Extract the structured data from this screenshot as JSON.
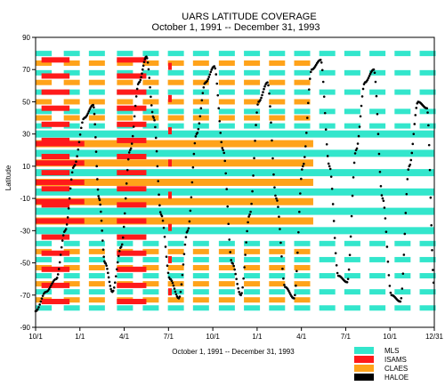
{
  "chart_data": {
    "type": "scatter",
    "title": "UARS LATITUDE COVERAGE",
    "subtitle": "October 1, 1991  --  December 31, 1993",
    "xlabel": "October 1, 1991  --  December 31, 1993",
    "ylabel": "Latitude",
    "x_range_months": [
      0,
      27
    ],
    "ylim": [
      -90,
      90
    ],
    "x_ticks": [
      {
        "label": "10/1",
        "month": 0
      },
      {
        "label": "1/1",
        "month": 3
      },
      {
        "label": "4/1",
        "month": 6
      },
      {
        "label": "7/1",
        "month": 9
      },
      {
        "label": "10/1",
        "month": 12
      },
      {
        "label": "1/1",
        "month": 15
      },
      {
        "label": "4/1",
        "month": 18
      },
      {
        "label": "7/1",
        "month": 21
      },
      {
        "label": "10/1",
        "month": 24
      },
      {
        "label": "12/31",
        "month": 27
      }
    ],
    "y_ticks": [
      90,
      70,
      50,
      30,
      10,
      -10,
      -30,
      -50,
      -70,
      -90
    ],
    "legend_position": "bottom-right",
    "series": [
      {
        "name": "MLS",
        "color": "#33e6cc",
        "equatorial_band": [
          -34,
          34
        ],
        "equatorial_months": [
          0,
          27
        ],
        "equatorial_stripes": [
          -30,
          -18,
          -6,
          6,
          18,
          30
        ],
        "high_lat_stripes": [
          80,
          68,
          56,
          44,
          35,
          -38,
          -48,
          -58,
          -68,
          -78
        ],
        "yaw_columns_months": [
          0.55,
          2.45,
          4.15,
          6.05,
          7.8,
          9.5,
          11.2,
          12.95,
          14.65,
          16.35,
          18.05,
          19.75,
          21.45,
          23.15,
          24.85,
          26.55
        ]
      },
      {
        "name": "ISAMS",
        "color": "#ff1a1a",
        "equatorial_band": [
          -34,
          34
        ],
        "equatorial_months": [
          0,
          3.3
        ],
        "columns": [
          {
            "months": [
              0.4,
              2.3
            ],
            "lat": [
              -80,
              80
            ]
          },
          {
            "months": [
              5.5,
              7.5
            ],
            "lat": [
              -80,
              80
            ]
          }
        ],
        "isolated_marks": [
          {
            "month": 9.1,
            "lat": 72
          },
          {
            "month": 9.1,
            "lat": 52
          },
          {
            "month": 9.1,
            "lat": 32
          },
          {
            "month": 9.1,
            "lat": 12
          },
          {
            "month": 9.1,
            "lat": -8
          },
          {
            "month": 9.1,
            "lat": -28
          },
          {
            "month": 9.1,
            "lat": -48
          },
          {
            "month": 9.1,
            "lat": -68
          }
        ]
      },
      {
        "name": "CLAES",
        "color": "#ffa31a",
        "equatorial_band": [
          -34,
          34
        ],
        "equatorial_months": [
          0,
          18.8
        ],
        "equatorial_stripes": [
          -24,
          -12,
          0,
          12,
          24
        ],
        "high_lat_stripes": [
          74,
          62,
          50,
          40,
          -43,
          -53,
          -63,
          -73
        ],
        "yaw_columns_months": [
          0.55,
          2.45,
          4.15,
          6.05,
          7.8,
          9.5,
          11.2,
          12.95,
          14.65,
          16.35,
          18.05
        ]
      },
      {
        "name": "HALOE",
        "color": "#000000",
        "description": "sunrise/sunset occultation latitudes",
        "points": [
          {
            "month": 0.0,
            "lat": -80
          },
          {
            "month": 0.7,
            "lat": -68
          },
          {
            "month": 1.4,
            "lat": -60
          },
          {
            "month": 2.0,
            "lat": -30
          },
          {
            "month": 2.6,
            "lat": 10
          },
          {
            "month": 3.3,
            "lat": 40
          },
          {
            "month": 3.9,
            "lat": 48
          },
          {
            "month": 4.3,
            "lat": -10
          },
          {
            "month": 4.7,
            "lat": -50
          },
          {
            "month": 5.2,
            "lat": -68
          },
          {
            "month": 5.8,
            "lat": -40
          },
          {
            "month": 6.4,
            "lat": 20
          },
          {
            "month": 7.0,
            "lat": 62
          },
          {
            "month": 7.5,
            "lat": 78
          },
          {
            "month": 8.0,
            "lat": 40
          },
          {
            "month": 8.5,
            "lat": -20
          },
          {
            "month": 9.1,
            "lat": -60
          },
          {
            "month": 9.7,
            "lat": -72
          },
          {
            "month": 10.3,
            "lat": -30
          },
          {
            "month": 10.9,
            "lat": 30
          },
          {
            "month": 11.5,
            "lat": 62
          },
          {
            "month": 12.1,
            "lat": 72
          },
          {
            "month": 12.7,
            "lat": 20
          },
          {
            "month": 13.3,
            "lat": -50
          },
          {
            "month": 13.9,
            "lat": -70
          },
          {
            "month": 14.5,
            "lat": -20
          },
          {
            "month": 15.1,
            "lat": 50
          },
          {
            "month": 15.7,
            "lat": 62
          },
          {
            "month": 16.3,
            "lat": -10
          },
          {
            "month": 16.9,
            "lat": -65
          },
          {
            "month": 17.5,
            "lat": -72
          },
          {
            "month": 18.1,
            "lat": 10
          },
          {
            "month": 18.7,
            "lat": 70
          },
          {
            "month": 19.3,
            "lat": 76
          },
          {
            "month": 19.9,
            "lat": 10
          },
          {
            "month": 20.5,
            "lat": -58
          },
          {
            "month": 21.1,
            "lat": -62
          },
          {
            "month": 21.7,
            "lat": 20
          },
          {
            "month": 22.3,
            "lat": 62
          },
          {
            "month": 22.9,
            "lat": 70
          },
          {
            "month": 23.5,
            "lat": -10
          },
          {
            "month": 24.1,
            "lat": -70
          },
          {
            "month": 24.7,
            "lat": -74
          },
          {
            "month": 25.3,
            "lat": 10
          },
          {
            "month": 25.9,
            "lat": 50
          },
          {
            "month": 26.5,
            "lat": 46
          },
          {
            "month": 27.0,
            "lat": -65
          }
        ]
      }
    ]
  }
}
